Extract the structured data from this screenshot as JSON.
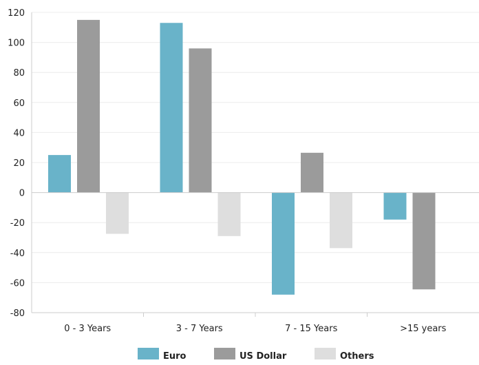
{
  "chart_data": {
    "type": "bar",
    "categories": [
      "0 - 3 Years",
      "3 - 7 Years",
      "7 - 15 Years",
      ">15 years"
    ],
    "series": [
      {
        "name": "Euro",
        "color": "#69b3c9",
        "values": [
          25,
          113,
          -68,
          -18
        ]
      },
      {
        "name": "US Dollar",
        "color": "#9b9b9b",
        "values": [
          115,
          96,
          26.5,
          -64.5
        ]
      },
      {
        "name": "Others",
        "color": "#dedede",
        "values": [
          -27.5,
          -29,
          -37,
          null
        ]
      }
    ],
    "ylim": [
      -80,
      120
    ],
    "yticks": [
      120,
      100,
      80,
      60,
      40,
      20,
      0,
      -20,
      -40,
      -60,
      -80
    ],
    "grid": true,
    "legend_position": "bottom"
  }
}
